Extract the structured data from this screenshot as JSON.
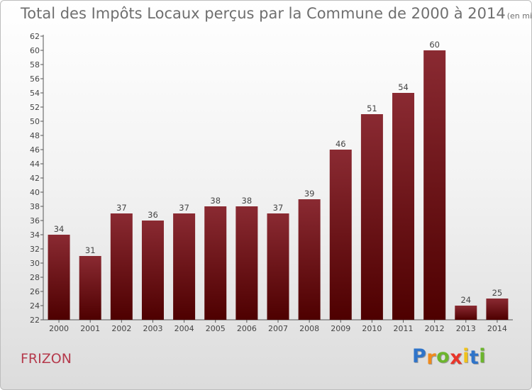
{
  "chart_data": {
    "type": "bar",
    "title": "Total des Impôts Locaux perçus par la Commune de 2000 à 2014",
    "unit_note": "(en milliers d'€)",
    "categories": [
      "2000",
      "2001",
      "2002",
      "2003",
      "2004",
      "2005",
      "2006",
      "2007",
      "2008",
      "2009",
      "2010",
      "2011",
      "2012",
      "2013",
      "2014"
    ],
    "values": [
      34,
      31,
      37,
      36,
      37,
      38,
      38,
      37,
      39,
      46,
      51,
      54,
      60,
      24,
      25
    ],
    "ylim": [
      22,
      62
    ],
    "yticks": [
      22,
      24,
      26,
      28,
      30,
      32,
      34,
      36,
      38,
      40,
      42,
      44,
      46,
      48,
      50,
      52,
      54,
      56,
      58,
      60,
      62
    ],
    "grid": false,
    "bar_color_top": "#8a2a32",
    "bar_color_bottom": "#4e0000"
  },
  "commune": "FRIZON",
  "logo": {
    "letters": [
      "P",
      "r",
      "o",
      "x",
      "i",
      "t",
      "i"
    ],
    "colors": [
      "#2f74c9",
      "#f08a1c",
      "#6cb52d",
      "#e8352a",
      "#f0c21c",
      "#2f74c9",
      "#6cb52d"
    ]
  }
}
